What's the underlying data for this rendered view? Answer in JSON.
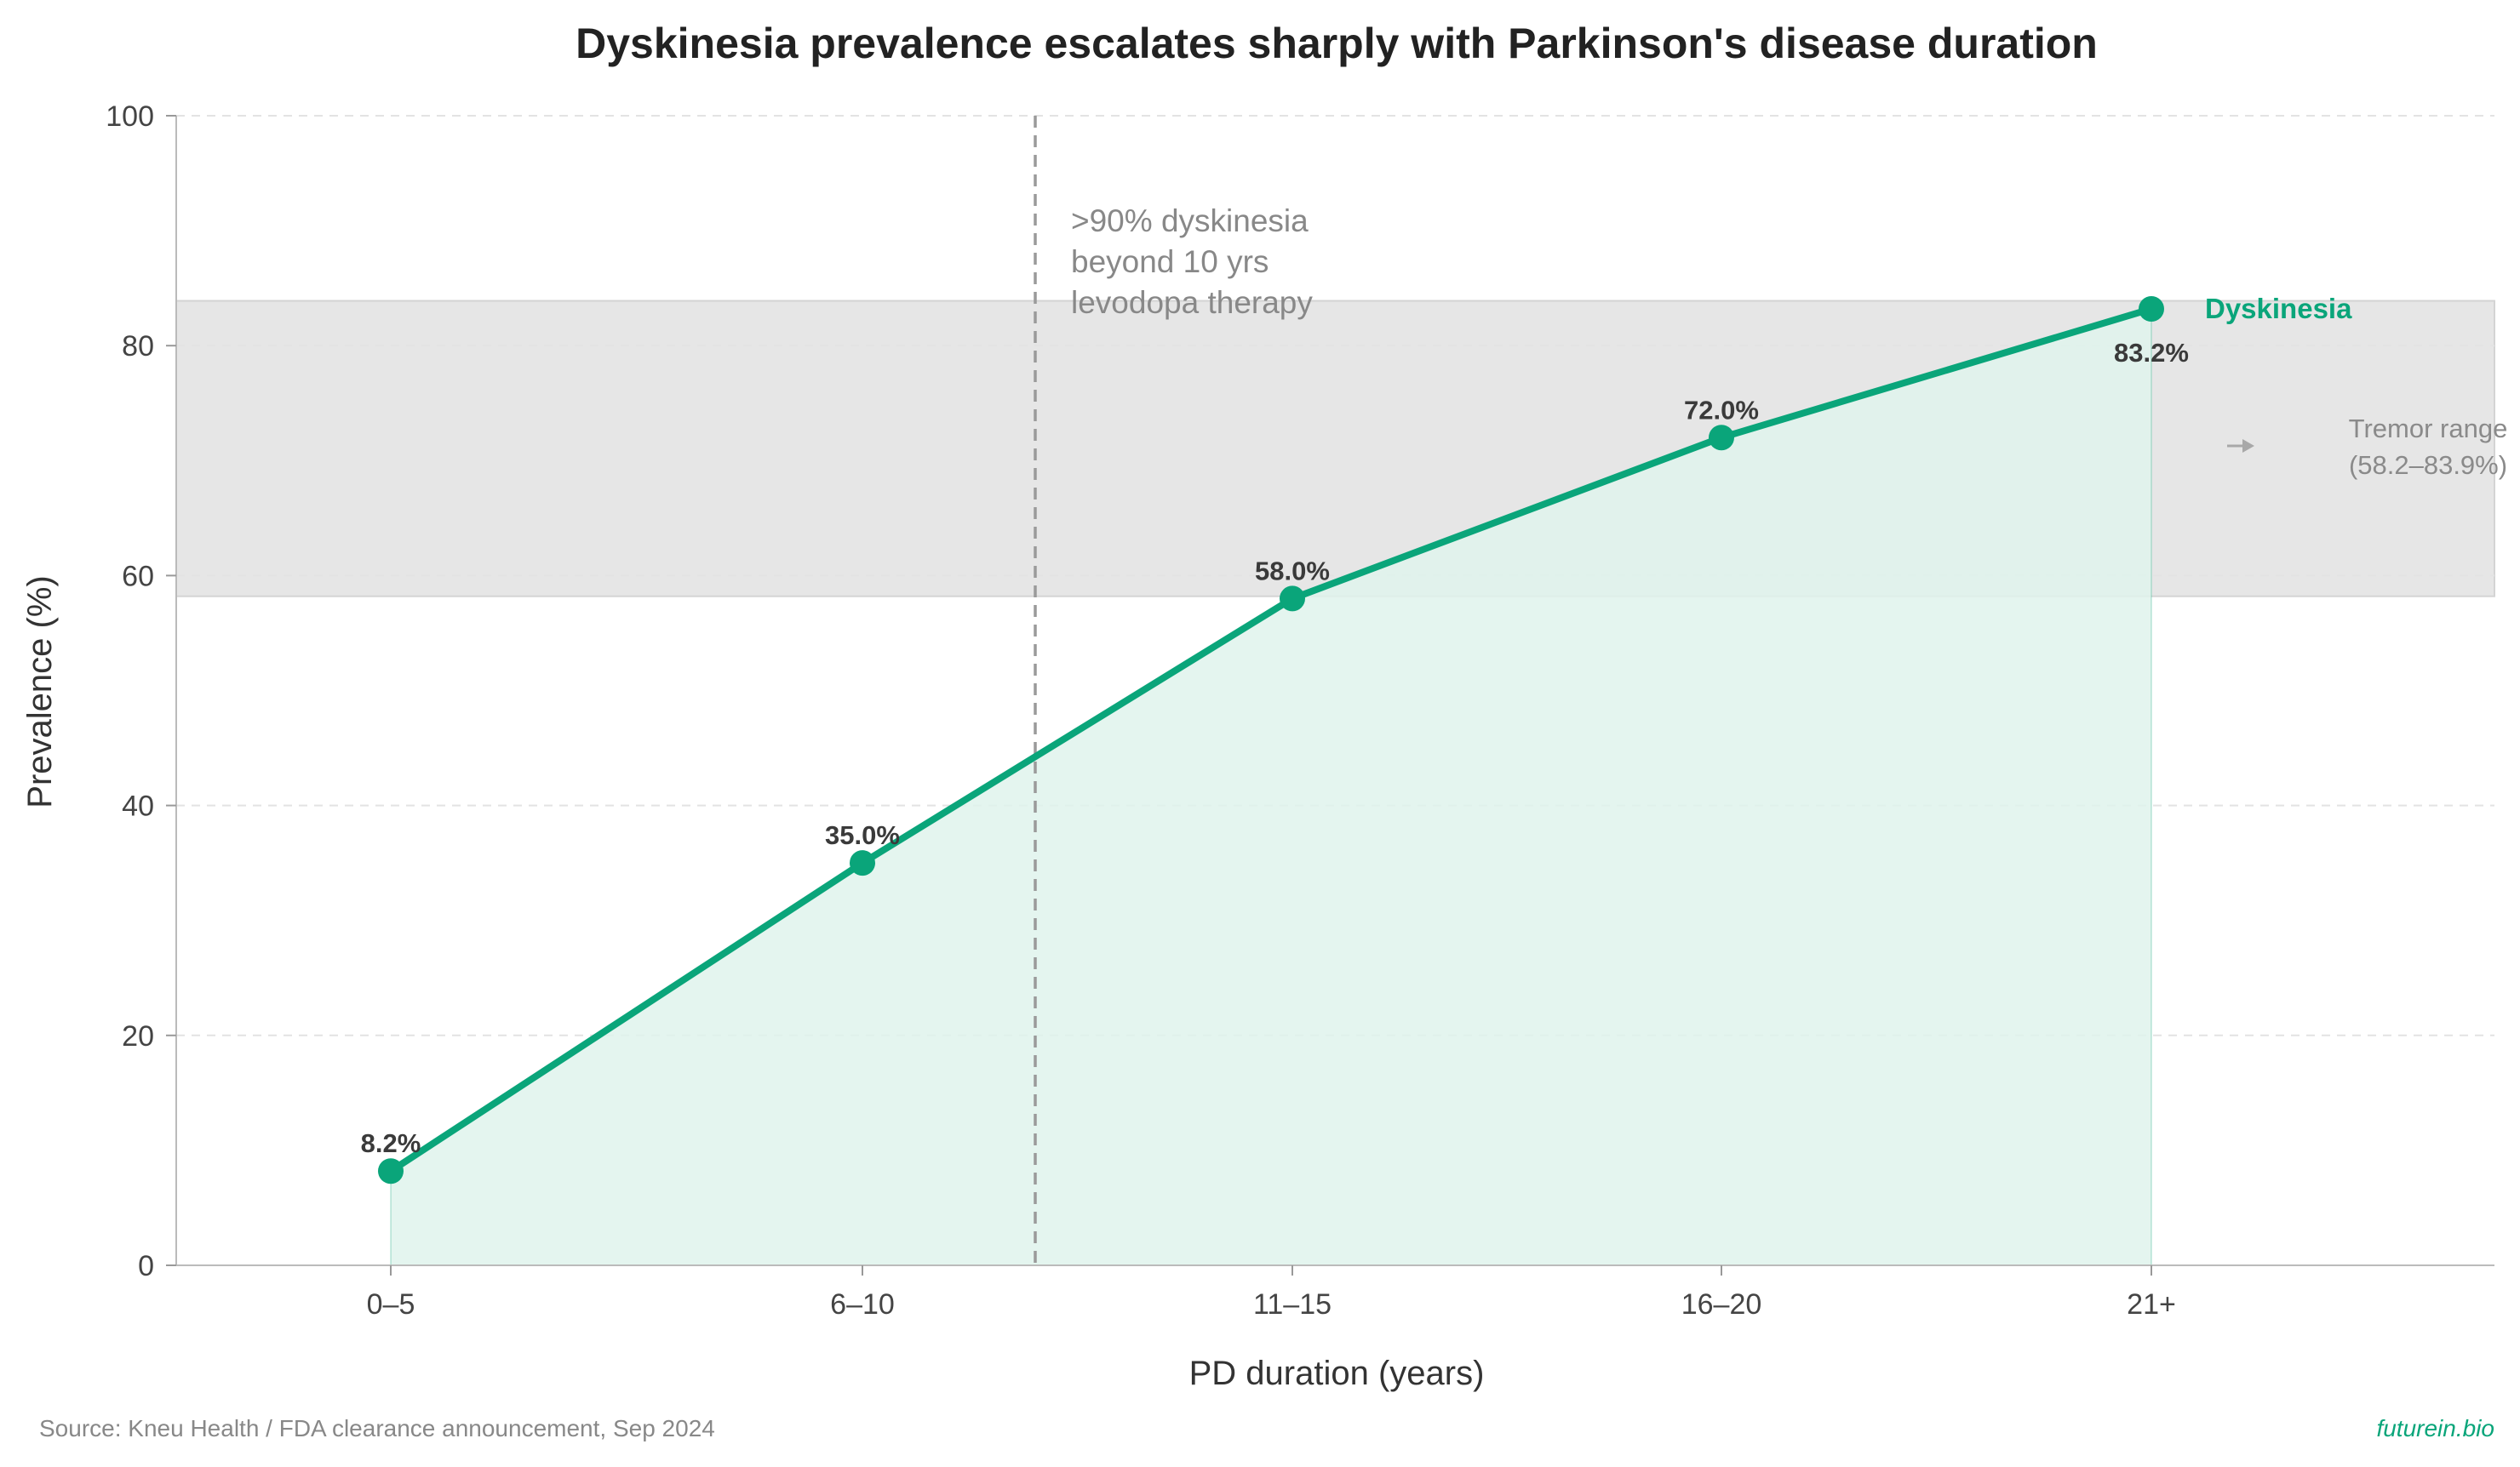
{
  "chart_data": {
    "type": "line",
    "title": "Dyskinesia prevalence escalates sharply with Parkinson's disease duration",
    "xlabel": "PD duration (years)",
    "ylabel": "Prevalence (%)",
    "categories": [
      "0–5",
      "6–10",
      "11–15",
      "16–20",
      "21+"
    ],
    "series": [
      {
        "name": "Dyskinesia",
        "values": [
          8.2,
          35.0,
          58.0,
          72.0,
          83.2
        ],
        "color": "#0aa57a"
      }
    ],
    "data_labels": [
      "8.2%",
      "35.0%",
      "58.0%",
      "72.0%",
      "83.2%"
    ],
    "ylim": [
      0,
      100
    ],
    "yticks": [
      0,
      20,
      40,
      60,
      80,
      100
    ],
    "grid": "horizontal dashed",
    "reference_band": {
      "range": [
        58.2,
        83.9
      ],
      "label_lines": [
        "Tremor range",
        "(58.2–83.9%)"
      ],
      "color": "#e6e6e6"
    },
    "reference_line": {
      "position_between": [
        "6–10",
        "11–15"
      ],
      "label_lines": [
        ">90% dyskinesia",
        "beyond 10 yrs",
        "levodopa therapy"
      ]
    },
    "fill_under_line": true,
    "fill_color": "#dff3ec",
    "legend": "inline label at line end"
  },
  "footer": {
    "source": "Source: Kneu Health / FDA clearance announcement, Sep 2024",
    "brand": "futurein.bio",
    "brand_color": "#0aa57a"
  }
}
